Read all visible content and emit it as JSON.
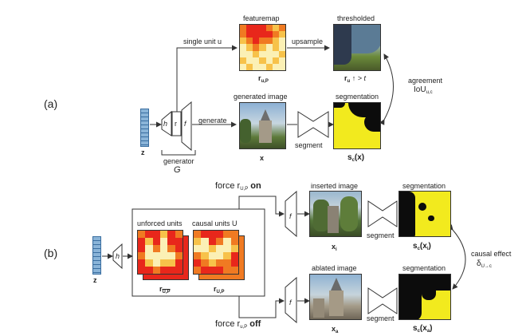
{
  "panels": {
    "a": "(a)",
    "b": "(b)"
  },
  "a": {
    "featuremap": "featuremap",
    "thresholded": "thresholded",
    "single_unit": "single unit u",
    "upsample": "upsample",
    "r_main": "r",
    "r_sub": "u,P",
    "thr_main": "r",
    "thr_sub": "u",
    "thr_rest": "↑ > t",
    "agreement": "agreement",
    "iou_main": "IoU",
    "iou_sub": "u,c",
    "generated_image": "generated image",
    "segmentation": "segmentation",
    "generate": "generate",
    "segment": "segment",
    "x": "x",
    "sc_main": "s",
    "sc_sub": "c",
    "sc_rest": "(x)",
    "z": "z",
    "h": "h",
    "r_layer": "r",
    "f": "f",
    "generator": "generator",
    "G": "G"
  },
  "b": {
    "force_on_prefix": "force r",
    "force_on_sub": "U,P",
    "force_on_suffix": "on",
    "force_off_prefix": "force r",
    "force_off_sub": "u,P",
    "force_off_suffix": "off",
    "unforced_units": "unforced units",
    "causal_units": "causal units U",
    "r1_main": "r",
    "r1_sub": "U,P",
    "r2_main": "r",
    "r2_sub": "U,P",
    "inserted_image": "inserted image",
    "ablated_image": "ablated image",
    "segmentation_top": "segmentation",
    "segmentation_bottom": "segmentation",
    "segment_top": "segment",
    "segment_bottom": "segment",
    "xi_main": "x",
    "xi_sub": "i",
    "xa_main": "x",
    "xa_sub": "a",
    "sci_main": "s",
    "sci_sub": "c",
    "sci_rest": "(x",
    "sci_sub2": "i",
    "sci_end": ")",
    "sca_main": "s",
    "sca_sub": "c",
    "sca_rest": "(x",
    "sca_sub2": "a",
    "sca_end": ")",
    "causal_effect": "causal effect",
    "delta_main": "δ",
    "delta_sub": "U→c",
    "z": "z",
    "h": "h",
    "f_top": "f",
    "f_bottom": "f"
  },
  "colors": {
    "z_vector": "#8ab4d8",
    "heat_hot": "#e8271b",
    "heat_mid": "#f07a22",
    "heat_warm": "#f7c24a",
    "heat_cool": "#fbf0b5",
    "segmentation_yellow": "#f2ea1e",
    "segmentation_black": "#0c0c0c"
  }
}
